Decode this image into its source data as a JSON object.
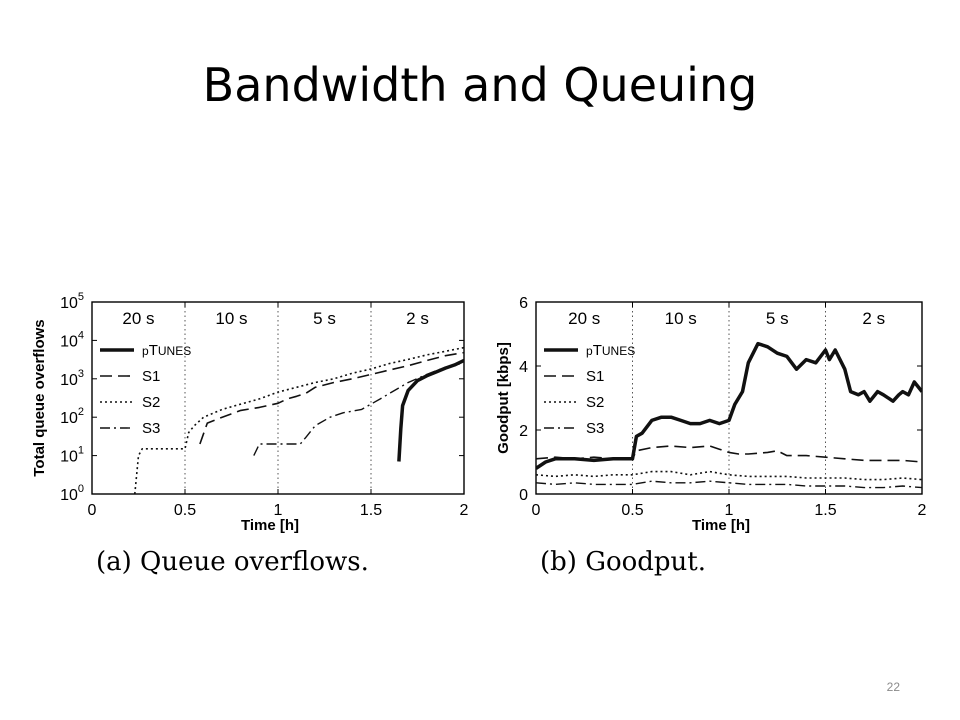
{
  "slide": {
    "title": "Bandwidth and Queuing",
    "page_number": "22"
  },
  "chart_data": [
    {
      "type": "line",
      "id": "a",
      "caption": "(a) Queue overflows.",
      "xlabel": "Time [h]",
      "ylabel": "Total queue overflows",
      "xlim": [
        0,
        2
      ],
      "ylim": [
        1,
        100000
      ],
      "yscale": "log",
      "xticks": [
        "0",
        "0.5",
        "1",
        "1.5",
        "2"
      ],
      "yticks": [
        {
          "base": "10",
          "exp": "0",
          "value": 1
        },
        {
          "base": "10",
          "exp": "1",
          "value": 10
        },
        {
          "base": "10",
          "exp": "2",
          "value": 100
        },
        {
          "base": "10",
          "exp": "3",
          "value": 1000
        },
        {
          "base": "10",
          "exp": "4",
          "value": 10000
        },
        {
          "base": "10",
          "exp": "5",
          "value": 100000
        }
      ],
      "periods": [
        {
          "label": "20 s",
          "x": 0.25
        },
        {
          "label": "10 s",
          "x": 0.75
        },
        {
          "label": "5 s",
          "x": 1.25
        },
        {
          "label": "2 s",
          "x": 1.75
        }
      ],
      "dividers": [
        0.5,
        1,
        1.5
      ],
      "legend_position": "left",
      "series": [
        {
          "name": "pTunes",
          "name_prefix": "p",
          "name_lead": "T",
          "name_rest": "UNES",
          "style": "thick",
          "points": [
            [
              1.65,
              7
            ],
            [
              1.66,
              50
            ],
            [
              1.67,
              200
            ],
            [
              1.7,
              500
            ],
            [
              1.75,
              900
            ],
            [
              1.8,
              1200
            ],
            [
              1.85,
              1500
            ],
            [
              1.9,
              1900
            ],
            [
              1.95,
              2300
            ],
            [
              2.0,
              3000
            ]
          ]
        },
        {
          "name": "S1",
          "name_prefix": "",
          "name_lead": "S1",
          "name_rest": "",
          "style": "dashed",
          "points": [
            [
              0.58,
              20
            ],
            [
              0.62,
              70
            ],
            [
              0.7,
              100
            ],
            [
              0.8,
              150
            ],
            [
              0.9,
              180
            ],
            [
              1.0,
              230
            ],
            [
              1.05,
              300
            ],
            [
              1.1,
              350
            ],
            [
              1.15,
              420
            ],
            [
              1.2,
              600
            ],
            [
              1.3,
              800
            ],
            [
              1.4,
              1000
            ],
            [
              1.5,
              1300
            ],
            [
              1.6,
              1700
            ],
            [
              1.7,
              2200
            ],
            [
              1.8,
              3000
            ],
            [
              1.9,
              4000
            ],
            [
              2.0,
              4800
            ]
          ]
        },
        {
          "name": "S2",
          "name_prefix": "",
          "name_lead": "S2",
          "name_rest": "",
          "style": "dotted",
          "points": [
            [
              0.23,
              1
            ],
            [
              0.25,
              10
            ],
            [
              0.27,
              15
            ],
            [
              0.5,
              15
            ],
            [
              0.52,
              40
            ],
            [
              0.55,
              60
            ],
            [
              0.6,
              100
            ],
            [
              0.7,
              160
            ],
            [
              0.8,
              220
            ],
            [
              0.9,
              300
            ],
            [
              1.0,
              450
            ],
            [
              1.1,
              600
            ],
            [
              1.2,
              800
            ],
            [
              1.3,
              1000
            ],
            [
              1.4,
              1400
            ],
            [
              1.5,
              1800
            ],
            [
              1.6,
              2500
            ],
            [
              1.7,
              3200
            ],
            [
              1.8,
              4200
            ],
            [
              1.9,
              5200
            ],
            [
              2.0,
              6500
            ]
          ]
        },
        {
          "name": "S3",
          "name_prefix": "",
          "name_lead": "S3",
          "name_rest": "",
          "style": "dashdot",
          "points": [
            [
              0.87,
              10
            ],
            [
              0.9,
              20
            ],
            [
              0.95,
              20
            ],
            [
              1.05,
              20
            ],
            [
              1.12,
              20
            ],
            [
              1.15,
              30
            ],
            [
              1.2,
              60
            ],
            [
              1.28,
              100
            ],
            [
              1.35,
              130
            ],
            [
              1.45,
              160
            ],
            [
              1.5,
              220
            ],
            [
              1.55,
              300
            ],
            [
              1.6,
              420
            ],
            [
              1.7,
              800
            ],
            [
              1.8,
              1300
            ],
            [
              1.9,
              2000
            ],
            [
              2.0,
              2600
            ]
          ]
        }
      ]
    },
    {
      "type": "line",
      "id": "b",
      "caption": "(b) Goodput.",
      "xlabel": "Time [h]",
      "ylabel": "Goodput [kbps]",
      "xlim": [
        0,
        2
      ],
      "ylim": [
        0,
        6
      ],
      "yscale": "linear",
      "xticks": [
        "0",
        "0.5",
        "1",
        "1.5",
        "2"
      ],
      "yticks": [
        {
          "label": "0",
          "value": 0
        },
        {
          "label": "2",
          "value": 2
        },
        {
          "label": "4",
          "value": 4
        },
        {
          "label": "6",
          "value": 6
        }
      ],
      "periods": [
        {
          "label": "20 s",
          "x": 0.25
        },
        {
          "label": "10 s",
          "x": 0.75
        },
        {
          "label": "5 s",
          "x": 1.25
        },
        {
          "label": "2 s",
          "x": 1.75
        }
      ],
      "dividers": [
        0.5,
        1,
        1.5
      ],
      "legend_position": "left",
      "series": [
        {
          "name": "pTunes",
          "name_prefix": "p",
          "name_lead": "T",
          "name_rest": "UNES",
          "style": "thick",
          "points": [
            [
              0,
              0.8
            ],
            [
              0.05,
              1.0
            ],
            [
              0.1,
              1.1
            ],
            [
              0.2,
              1.1
            ],
            [
              0.3,
              1.05
            ],
            [
              0.4,
              1.1
            ],
            [
              0.5,
              1.1
            ],
            [
              0.52,
              1.8
            ],
            [
              0.55,
              1.9
            ],
            [
              0.6,
              2.3
            ],
            [
              0.65,
              2.4
            ],
            [
              0.7,
              2.4
            ],
            [
              0.75,
              2.3
            ],
            [
              0.8,
              2.2
            ],
            [
              0.85,
              2.2
            ],
            [
              0.9,
              2.3
            ],
            [
              0.95,
              2.2
            ],
            [
              1.0,
              2.3
            ],
            [
              1.03,
              2.8
            ],
            [
              1.07,
              3.2
            ],
            [
              1.1,
              4.1
            ],
            [
              1.15,
              4.7
            ],
            [
              1.2,
              4.6
            ],
            [
              1.25,
              4.4
            ],
            [
              1.3,
              4.3
            ],
            [
              1.35,
              3.9
            ],
            [
              1.4,
              4.2
            ],
            [
              1.45,
              4.1
            ],
            [
              1.5,
              4.5
            ],
            [
              1.52,
              4.2
            ],
            [
              1.55,
              4.5
            ],
            [
              1.6,
              3.9
            ],
            [
              1.63,
              3.2
            ],
            [
              1.67,
              3.1
            ],
            [
              1.7,
              3.2
            ],
            [
              1.73,
              2.9
            ],
            [
              1.77,
              3.2
            ],
            [
              1.8,
              3.1
            ],
            [
              1.85,
              2.9
            ],
            [
              1.88,
              3.1
            ],
            [
              1.9,
              3.2
            ],
            [
              1.93,
              3.1
            ],
            [
              1.96,
              3.5
            ],
            [
              2.0,
              3.2
            ]
          ]
        },
        {
          "name": "S1",
          "name_prefix": "",
          "name_lead": "S1",
          "name_rest": "",
          "style": "dashed",
          "points": [
            [
              0,
              1.1
            ],
            [
              0.1,
              1.15
            ],
            [
              0.2,
              1.1
            ],
            [
              0.3,
              1.15
            ],
            [
              0.4,
              1.1
            ],
            [
              0.5,
              1.1
            ],
            [
              0.52,
              1.35
            ],
            [
              0.6,
              1.45
            ],
            [
              0.7,
              1.5
            ],
            [
              0.8,
              1.45
            ],
            [
              0.9,
              1.5
            ],
            [
              0.95,
              1.4
            ],
            [
              1.0,
              1.3
            ],
            [
              1.05,
              1.25
            ],
            [
              1.1,
              1.25
            ],
            [
              1.2,
              1.3
            ],
            [
              1.25,
              1.35
            ],
            [
              1.3,
              1.2
            ],
            [
              1.4,
              1.2
            ],
            [
              1.5,
              1.15
            ],
            [
              1.6,
              1.1
            ],
            [
              1.7,
              1.05
            ],
            [
              1.8,
              1.05
            ],
            [
              1.9,
              1.05
            ],
            [
              2.0,
              1.0
            ]
          ]
        },
        {
          "name": "S2",
          "name_prefix": "",
          "name_lead": "S2",
          "name_rest": "",
          "style": "dotted",
          "points": [
            [
              0,
              0.6
            ],
            [
              0.1,
              0.55
            ],
            [
              0.2,
              0.6
            ],
            [
              0.3,
              0.55
            ],
            [
              0.4,
              0.6
            ],
            [
              0.5,
              0.6
            ],
            [
              0.6,
              0.7
            ],
            [
              0.7,
              0.7
            ],
            [
              0.8,
              0.6
            ],
            [
              0.9,
              0.7
            ],
            [
              1.0,
              0.6
            ],
            [
              1.1,
              0.55
            ],
            [
              1.2,
              0.55
            ],
            [
              1.3,
              0.55
            ],
            [
              1.4,
              0.5
            ],
            [
              1.5,
              0.5
            ],
            [
              1.6,
              0.5
            ],
            [
              1.7,
              0.45
            ],
            [
              1.8,
              0.45
            ],
            [
              1.9,
              0.5
            ],
            [
              2.0,
              0.45
            ]
          ]
        },
        {
          "name": "S3",
          "name_prefix": "",
          "name_lead": "S3",
          "name_rest": "",
          "style": "dashdot",
          "points": [
            [
              0,
              0.35
            ],
            [
              0.1,
              0.3
            ],
            [
              0.2,
              0.35
            ],
            [
              0.3,
              0.3
            ],
            [
              0.4,
              0.3
            ],
            [
              0.5,
              0.3
            ],
            [
              0.6,
              0.4
            ],
            [
              0.7,
              0.35
            ],
            [
              0.8,
              0.35
            ],
            [
              0.9,
              0.4
            ],
            [
              1.0,
              0.35
            ],
            [
              1.1,
              0.3
            ],
            [
              1.2,
              0.3
            ],
            [
              1.3,
              0.3
            ],
            [
              1.4,
              0.25
            ],
            [
              1.5,
              0.25
            ],
            [
              1.6,
              0.25
            ],
            [
              1.7,
              0.2
            ],
            [
              1.8,
              0.2
            ],
            [
              1.9,
              0.25
            ],
            [
              2.0,
              0.2
            ]
          ]
        }
      ]
    }
  ]
}
